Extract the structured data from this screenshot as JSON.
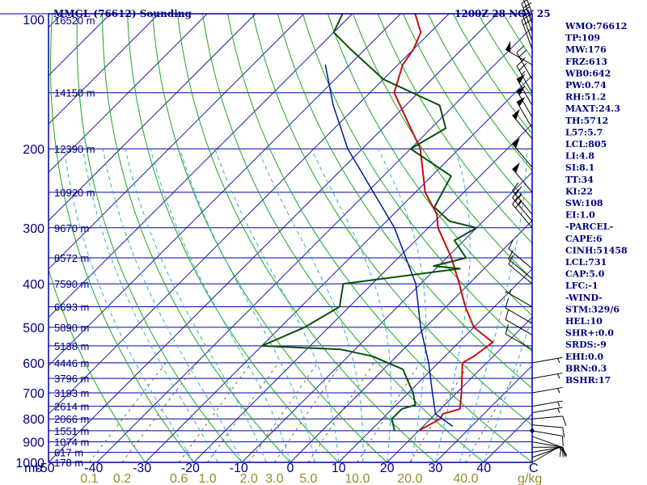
{
  "header": {
    "station_title": "MMGL (76612) Sounding",
    "valid_time": "1200Z 28 NOV 25"
  },
  "colors": {
    "frame": "#0000a0",
    "isotherm": "#1a1aa0",
    "dry_adiabat": "#1ea51e",
    "moist_adiabat": "#30b0c8",
    "mixing_ratio": "#6a6a3a",
    "temperature": "#c01010",
    "dewpoint": "#0a500a",
    "parcel": "#0018a0",
    "axis_text": "#000080",
    "mixratio_text": "#9a8a2a"
  },
  "chart_data": {
    "type": "line",
    "title": "MMGL (76612) Sounding",
    "subtitle": "1200Z 28 NOV 25",
    "xlabel": "C",
    "ylabel": "mb",
    "xlim": [
      -50,
      50
    ],
    "ylim": [
      1000,
      100
    ],
    "y_scale": "log",
    "grid": true,
    "pressure_ticks": [
      {
        "p": 100,
        "label": "100"
      },
      {
        "p": 200,
        "label": "200"
      },
      {
        "p": 300,
        "label": "300"
      },
      {
        "p": 400,
        "label": "400"
      },
      {
        "p": 500,
        "label": "500"
      },
      {
        "p": 600,
        "label": "600"
      },
      {
        "p": 700,
        "label": "700"
      },
      {
        "p": 800,
        "label": "800"
      },
      {
        "p": 900,
        "label": "900"
      },
      {
        "p": 1000,
        "label": "1000"
      }
    ],
    "temperature_ticks": [
      {
        "t": -50,
        "label": "-50"
      },
      {
        "t": -40,
        "label": "-40"
      },
      {
        "t": -30,
        "label": "-30"
      },
      {
        "t": -20,
        "label": "-20"
      },
      {
        "t": -10,
        "label": "-10"
      },
      {
        "t": 0,
        "label": "0"
      },
      {
        "t": 10,
        "label": "10"
      },
      {
        "t": 20,
        "label": "20"
      },
      {
        "t": 30,
        "label": "30"
      },
      {
        "t": 40,
        "label": "40"
      }
    ],
    "mixing_ratio_ticks": [
      {
        "w": 0.1,
        "label": "0.1"
      },
      {
        "w": 0.2,
        "label": "0.2"
      },
      {
        "w": 0.6,
        "label": "0.6"
      },
      {
        "w": 1.0,
        "label": "1.0"
      },
      {
        "w": 2.0,
        "label": "2.0"
      },
      {
        "w": 3.0,
        "label": "3.0"
      },
      {
        "w": 5.0,
        "label": "5.0"
      },
      {
        "w": 10.0,
        "label": "10.0"
      },
      {
        "w": 20.0,
        "label": "20.0"
      },
      {
        "w": 40.0,
        "label": "40.0"
      }
    ],
    "mixing_ratio_unit": "g/kg",
    "height_labels": [
      {
        "p": 100,
        "label": "16520 m"
      },
      {
        "p": 150,
        "label": "14150 m"
      },
      {
        "p": 200,
        "label": "12390 m"
      },
      {
        "p": 250,
        "label": "10920 m"
      },
      {
        "p": 300,
        "label": "9670 m"
      },
      {
        "p": 350,
        "label": "8572 m"
      },
      {
        "p": 400,
        "label": "7590 m"
      },
      {
        "p": 450,
        "label": "6693 m"
      },
      {
        "p": 500,
        "label": "5890 m"
      },
      {
        "p": 550,
        "label": "5138 m"
      },
      {
        "p": 600,
        "label": "4446 m"
      },
      {
        "p": 650,
        "label": "3796 m"
      },
      {
        "p": 700,
        "label": "3193 m"
      },
      {
        "p": 750,
        "label": "2614 m"
      },
      {
        "p": 800,
        "label": "2066 m"
      },
      {
        "p": 850,
        "label": "1551 m"
      },
      {
        "p": 900,
        "label": "1074 m"
      },
      {
        "p": 950,
        "label": "617 m"
      },
      {
        "p": 1000,
        "label": "178 m"
      }
    ],
    "series": [
      {
        "key": "temperature",
        "points": [
          {
            "p": 850,
            "t": 20.0
          },
          {
            "p": 800,
            "t": 22.0
          },
          {
            "p": 780,
            "t": 21.5
          },
          {
            "p": 760,
            "t": 24.0
          },
          {
            "p": 700,
            "t": 21.0
          },
          {
            "p": 600,
            "t": 15.0
          },
          {
            "p": 580,
            "t": 16.0
          },
          {
            "p": 540,
            "t": 17.0
          },
          {
            "p": 500,
            "t": 10.0
          },
          {
            "p": 450,
            "t": 4.0
          },
          {
            "p": 400,
            "t": -2.0
          },
          {
            "p": 350,
            "t": -9.0
          },
          {
            "p": 300,
            "t": -18.0
          },
          {
            "p": 280,
            "t": -21.0
          },
          {
            "p": 250,
            "t": -28.0
          },
          {
            "p": 200,
            "t": -38.0
          },
          {
            "p": 150,
            "t": -55.0
          },
          {
            "p": 130,
            "t": -59.0
          },
          {
            "p": 120,
            "t": -60.0
          },
          {
            "p": 110,
            "t": -62.0
          },
          {
            "p": 100,
            "t": -67.0
          }
        ]
      },
      {
        "key": "dewpoint",
        "points": [
          {
            "p": 850,
            "t": 15.0
          },
          {
            "p": 800,
            "t": 12.0
          },
          {
            "p": 760,
            "t": 12.0
          },
          {
            "p": 745,
            "t": 14.0
          },
          {
            "p": 700,
            "t": 11.0
          },
          {
            "p": 620,
            "t": 4.0
          },
          {
            "p": 580,
            "t": -5.0
          },
          {
            "p": 560,
            "t": -13.0
          },
          {
            "p": 550,
            "t": -30.0
          },
          {
            "p": 500,
            "t": -25.0
          },
          {
            "p": 450,
            "t": -22.0
          },
          {
            "p": 400,
            "t": -26.0
          },
          {
            "p": 370,
            "t": -5.0
          },
          {
            "p": 365,
            "t": -11.0
          },
          {
            "p": 350,
            "t": -6.0
          },
          {
            "p": 320,
            "t": -12.0
          },
          {
            "p": 300,
            "t": -10.0
          },
          {
            "p": 290,
            "t": -17.0
          },
          {
            "p": 270,
            "t": -23.0
          },
          {
            "p": 230,
            "t": -26.0
          },
          {
            "p": 200,
            "t": -40.0
          },
          {
            "p": 180,
            "t": -37.0
          },
          {
            "p": 160,
            "t": -43.0
          },
          {
            "p": 140,
            "t": -60.0
          },
          {
            "p": 120,
            "t": -73.0
          },
          {
            "p": 110,
            "t": -80.0
          },
          {
            "p": 100,
            "t": -82.0
          }
        ]
      },
      {
        "key": "parcel",
        "points": [
          {
            "p": 830,
            "t": 26.0
          },
          {
            "p": 780,
            "t": 20.0
          },
          {
            "p": 700,
            "t": 15.0
          },
          {
            "p": 600,
            "t": 8.0
          },
          {
            "p": 500,
            "t": -1.0
          },
          {
            "p": 400,
            "t": -11.0
          },
          {
            "p": 300,
            "t": -27.0
          },
          {
            "p": 200,
            "t": -53.0
          },
          {
            "p": 160,
            "t": -65.0
          },
          {
            "p": 130,
            "t": -75.0
          }
        ]
      }
    ],
    "wind_barbs": [
      {
        "p": 1000,
        "dir": 60,
        "spd": 10
      },
      {
        "p": 975,
        "dir": 70,
        "spd": 10
      },
      {
        "p": 950,
        "dir": 80,
        "spd": 10
      },
      {
        "p": 925,
        "dir": 90,
        "spd": 10
      },
      {
        "p": 900,
        "dir": 100,
        "spd": 10
      },
      {
        "p": 875,
        "dir": 110,
        "spd": 10
      },
      {
        "p": 850,
        "dir": 100,
        "spd": 10
      },
      {
        "p": 825,
        "dir": 95,
        "spd": 10
      },
      {
        "p": 800,
        "dir": 85,
        "spd": 10
      },
      {
        "p": 775,
        "dir": 80,
        "spd": 5
      },
      {
        "p": 750,
        "dir": 80,
        "spd": 5
      },
      {
        "p": 700,
        "dir": 80,
        "spd": 5
      },
      {
        "p": 650,
        "dir": 80,
        "spd": 5
      },
      {
        "p": 600,
        "dir": 80,
        "spd": 5
      },
      {
        "p": 560,
        "dir": 300,
        "spd": 10
      },
      {
        "p": 520,
        "dir": 300,
        "spd": 10
      },
      {
        "p": 490,
        "dir": 300,
        "spd": 10
      },
      {
        "p": 450,
        "dir": 300,
        "spd": 5
      },
      {
        "p": 400,
        "dir": 310,
        "spd": 10
      },
      {
        "p": 390,
        "dir": 310,
        "spd": 10
      },
      {
        "p": 370,
        "dir": 310,
        "spd": 10
      },
      {
        "p": 300,
        "dir": 320,
        "spd": 20
      },
      {
        "p": 290,
        "dir": 320,
        "spd": 25
      },
      {
        "p": 280,
        "dir": 320,
        "spd": 25
      },
      {
        "p": 250,
        "dir": 320,
        "spd": 50
      },
      {
        "p": 220,
        "dir": 320,
        "spd": 50
      },
      {
        "p": 190,
        "dir": 320,
        "spd": 50
      },
      {
        "p": 180,
        "dir": 330,
        "spd": 50
      },
      {
        "p": 170,
        "dir": 330,
        "spd": 50
      },
      {
        "p": 160,
        "dir": 330,
        "spd": 50
      },
      {
        "p": 150,
        "dir": 330,
        "spd": 25
      },
      {
        "p": 140,
        "dir": 330,
        "spd": 25
      },
      {
        "p": 130,
        "dir": 300,
        "spd": 50
      },
      {
        "p": 120,
        "dir": 340,
        "spd": 20
      },
      {
        "p": 115,
        "dir": 340,
        "spd": 20
      },
      {
        "p": 110,
        "dir": 340,
        "spd": 20
      },
      {
        "p": 105,
        "dir": 340,
        "spd": 20
      },
      {
        "p": 100,
        "dir": 340,
        "spd": 20
      }
    ]
  },
  "indices": [
    "WMO:76612",
    "TP:109",
    "MW:176",
    "FRZ:613",
    "WB0:642",
    "PW:0.74",
    "RH:51.2",
    "MAXT:24.3",
    "TH:5712",
    "L57:5.7",
    "LCL:805",
    "LI:4.8",
    "SI:8.1",
    "TT:34",
    "KI:22",
    "SW:108",
    "EI:1.0",
    "-PARCEL-",
    "CAPE:6",
    "CINH:51458",
    "LCL:731",
    "CAP:5.0",
    "LFC:-1",
    "-WIND-",
    "STM:329/6",
    "HEL:10",
    "SHR+:0.0",
    "SRDS:-9",
    "EHI:0.0",
    "BRN:0.3",
    "BSHR:17"
  ]
}
